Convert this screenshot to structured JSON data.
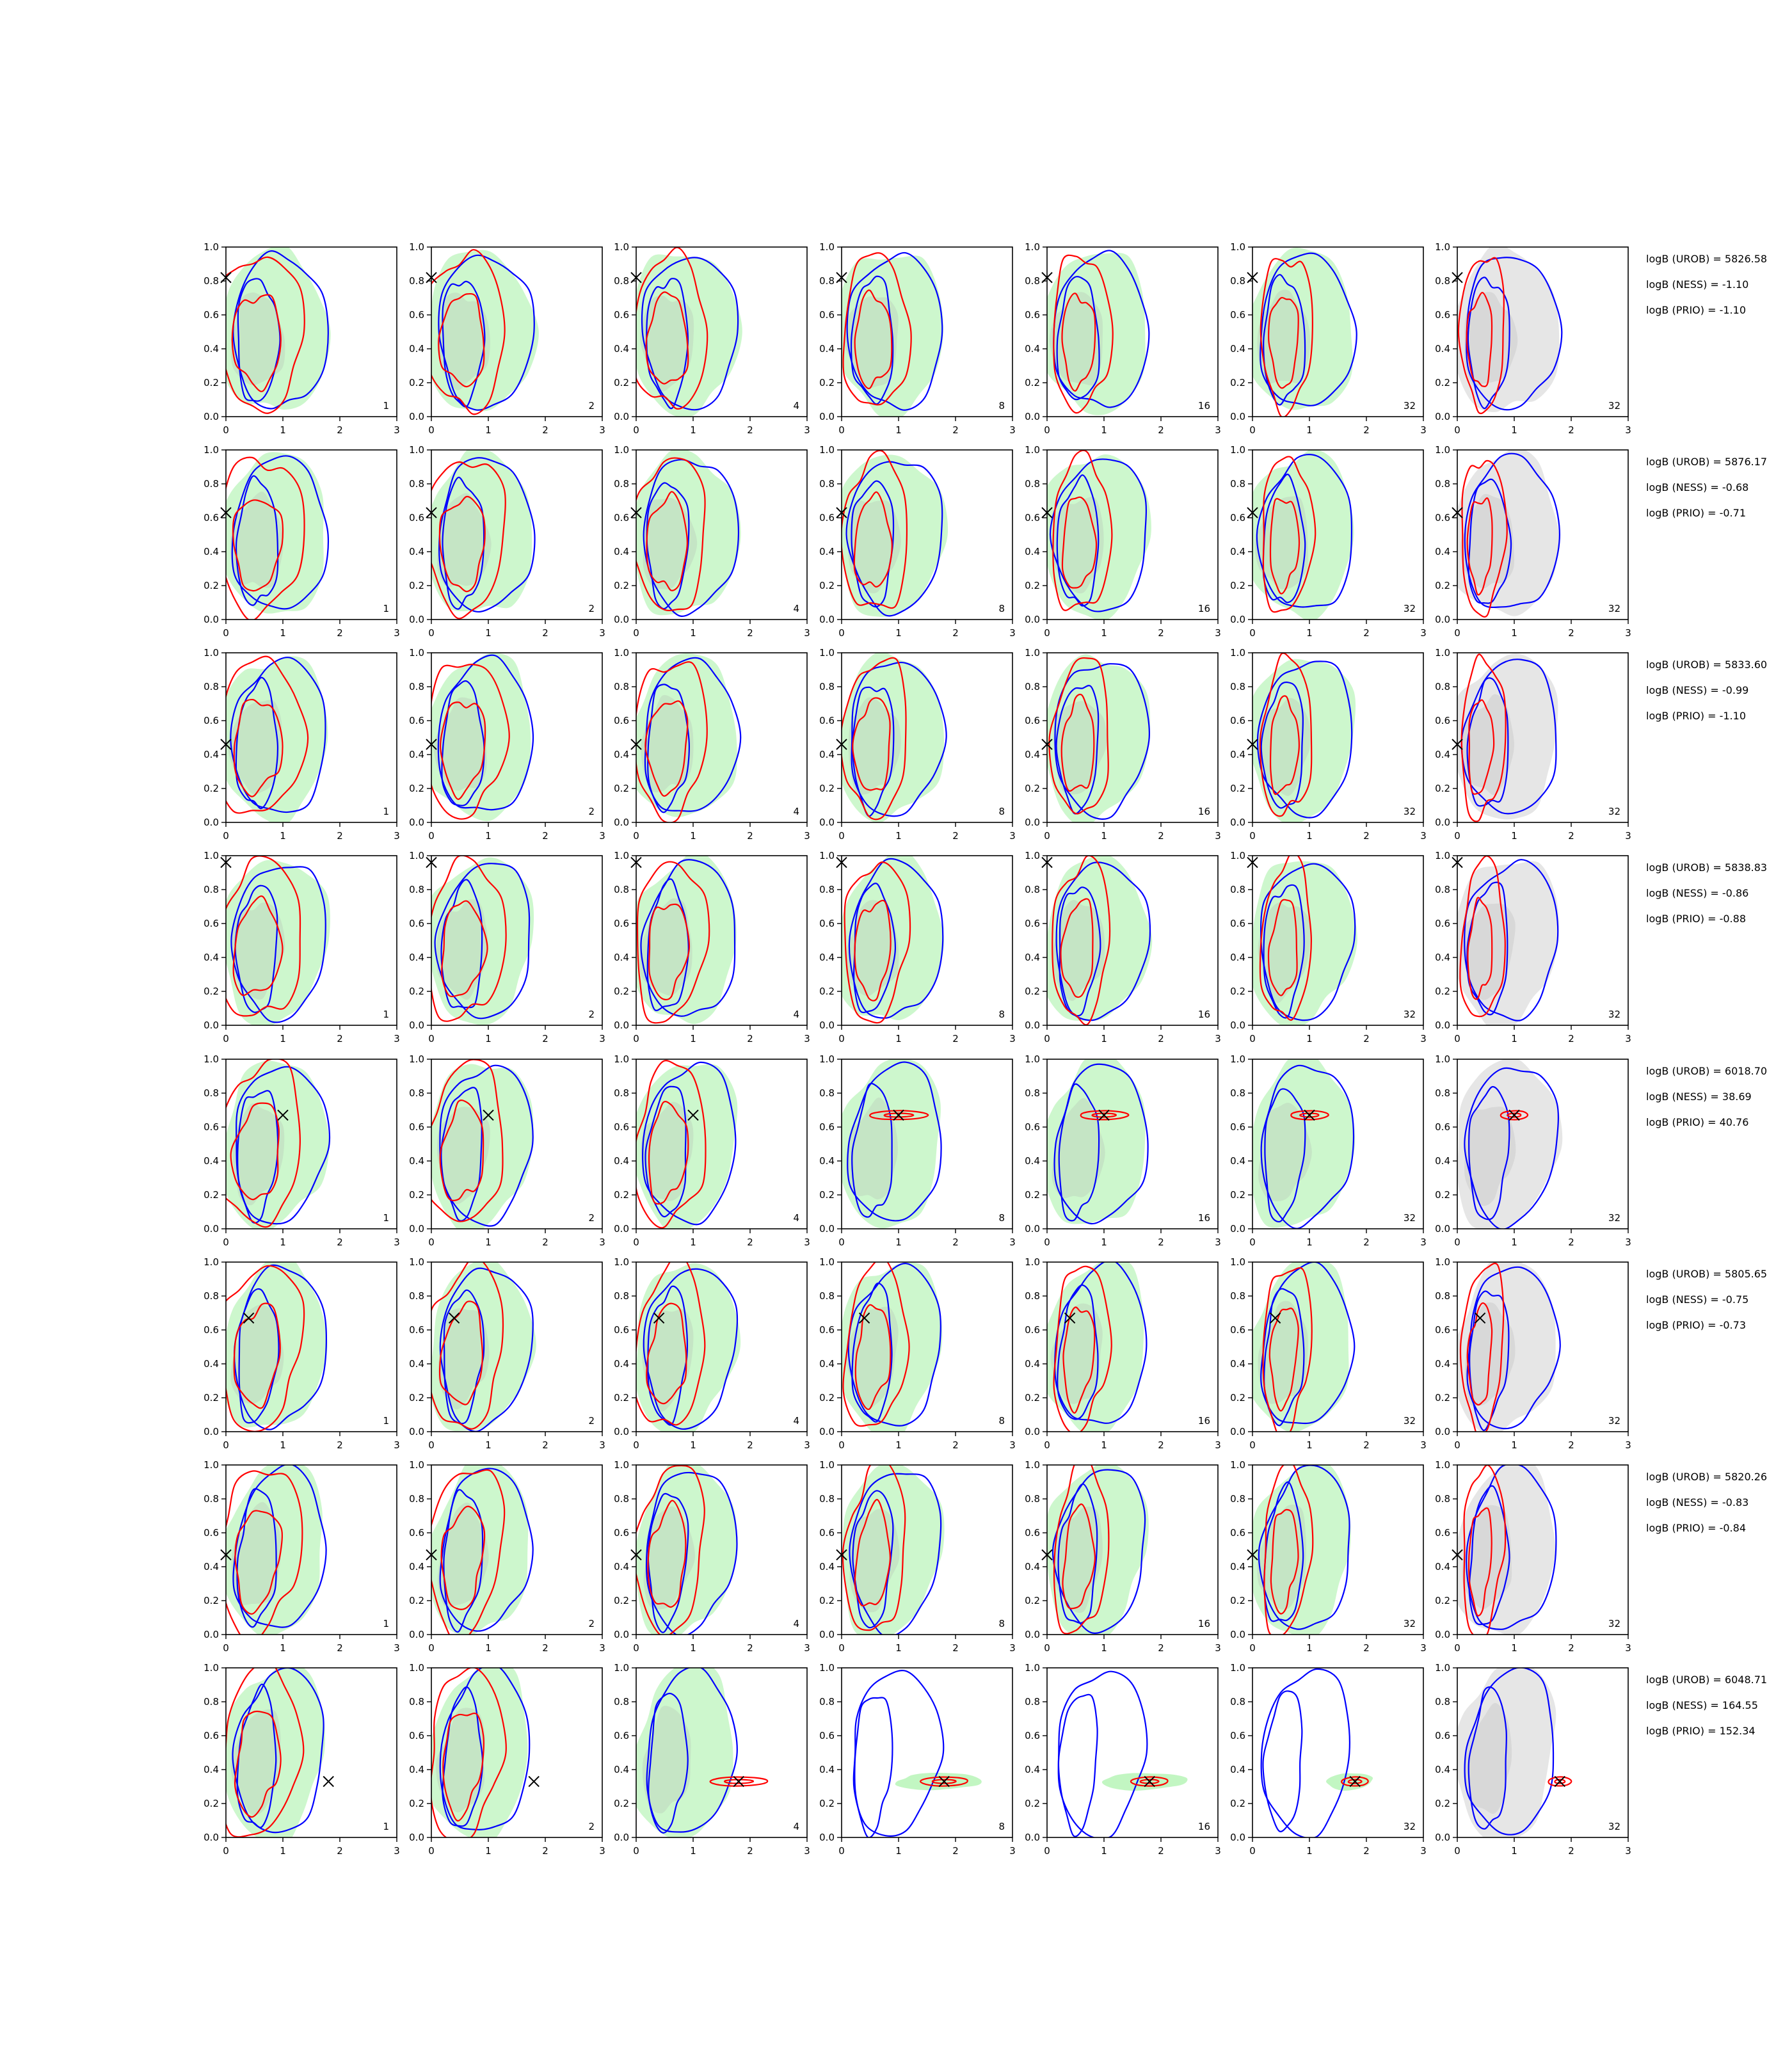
{
  "chart_data": {
    "type": "contour",
    "grid": {
      "rows": 8,
      "cols": 7
    },
    "xlim": [
      0,
      3
    ],
    "ylim": [
      0,
      1
    ],
    "x_ticks": [
      "0",
      "1",
      "2",
      "3"
    ],
    "y_ticks": [
      "0.0",
      "0.2",
      "0.4",
      "0.6",
      "0.8",
      "1.0"
    ],
    "column_labels": [
      "1",
      "2",
      "4",
      "8",
      "16",
      "32",
      "32"
    ],
    "colors": {
      "green": "#90ee90",
      "gray": "#c8c8c8",
      "red": "#ff0000",
      "blue": "#0000ff",
      "marker": "#000000"
    },
    "rows": [
      {
        "marker": [
          0.0,
          0.82
        ],
        "conv_col": -1,
        "stats": [
          "logB (UROB) = 5826.58",
          "logB (NESS) = -1.10",
          "logB (PRIO) = -1.10"
        ]
      },
      {
        "marker": [
          0.0,
          0.63
        ],
        "conv_col": -1,
        "stats": [
          "logB (UROB) = 5876.17",
          "logB (NESS) = -0.68",
          "logB (PRIO) = -0.71"
        ]
      },
      {
        "marker": [
          0.0,
          0.46
        ],
        "conv_col": -1,
        "stats": [
          "logB (UROB) = 5833.60",
          "logB (NESS) = -0.99",
          "logB (PRIO) = -1.10"
        ]
      },
      {
        "marker": [
          0.0,
          0.96
        ],
        "conv_col": -1,
        "stats": [
          "logB (UROB) = 5838.83",
          "logB (NESS) = -0.86",
          "logB (PRIO) = -0.88"
        ]
      },
      {
        "marker": [
          1.0,
          0.67
        ],
        "conv_col": 3,
        "stats": [
          "logB (UROB) = 6018.70",
          "logB (NESS) = 38.69",
          "logB (PRIO) = 40.76"
        ]
      },
      {
        "marker": [
          0.4,
          0.67
        ],
        "conv_col": -1,
        "stats": [
          "logB (UROB) = 5805.65",
          "logB (NESS) = -0.75",
          "logB (PRIO) = -0.73"
        ]
      },
      {
        "marker": [
          0.0,
          0.47
        ],
        "conv_col": -1,
        "stats": [
          "logB (UROB) = 5820.26",
          "logB (NESS) = -0.83",
          "logB (PRIO) = -0.84"
        ]
      },
      {
        "marker": [
          1.8,
          0.33
        ],
        "conv_col": 2,
        "stats": [
          "logB (UROB) = 6048.71",
          "logB (NESS) = 164.55",
          "logB (PRIO) = 152.34"
        ]
      }
    ]
  }
}
